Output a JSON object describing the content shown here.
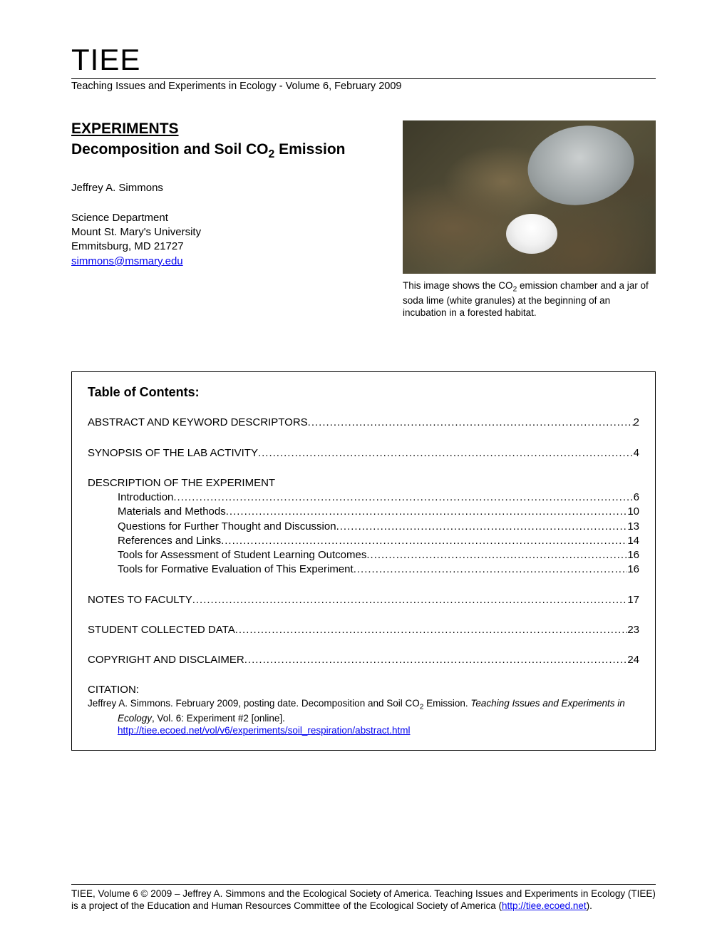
{
  "header": {
    "title": "TIEE",
    "subtitle": "Teaching Issues and Experiments in Ecology - Volume 6, February 2009"
  },
  "article": {
    "section_heading": "EXPERIMENTS",
    "title_prefix": "Decomposition and Soil CO",
    "title_sub": "2",
    "title_suffix": " Emission",
    "author": "Jeffrey A. Simmons",
    "affil_line1": "Science Department",
    "affil_line2": "Mount St. Mary's University",
    "affil_line3": "Emmitsburg, MD 21727",
    "email": "simmons@msmary.edu"
  },
  "figure": {
    "caption_prefix": "This image shows the CO",
    "caption_sub": "2",
    "caption_suffix": " emission chamber and a jar of soda lime (white granules) at the beginning of an incubation in a forested habitat."
  },
  "toc": {
    "title": "Table of Contents:",
    "items": [
      {
        "label": "ABSTRACT AND KEYWORD DESCRIPTORS",
        "page": "2",
        "spaced": true,
        "sub": false,
        "hasPage": true
      },
      {
        "label": "SYNOPSIS OF THE LAB ACTIVITY",
        "page": "4",
        "spaced": true,
        "sub": false,
        "hasPage": true
      },
      {
        "label": "DESCRIPTION OF THE EXPERIMENT",
        "page": "",
        "spaced": true,
        "sub": false,
        "hasPage": false
      },
      {
        "label": "Introduction",
        "page": "6",
        "spaced": false,
        "sub": true,
        "hasPage": true
      },
      {
        "label": "Materials and Methods",
        "page": "10",
        "spaced": false,
        "sub": true,
        "hasPage": true
      },
      {
        "label": "Questions for Further Thought and Discussion",
        "page": "13",
        "spaced": false,
        "sub": true,
        "hasPage": true
      },
      {
        "label": "References and Links",
        "page": "14",
        "spaced": false,
        "sub": true,
        "hasPage": true
      },
      {
        "label": "Tools for Assessment of Student Learning Outcomes",
        "page": "16",
        "spaced": false,
        "sub": true,
        "hasPage": true
      },
      {
        "label": "Tools for Formative Evaluation of This Experiment",
        "page": "16",
        "spaced": false,
        "sub": true,
        "hasPage": true
      },
      {
        "label": "NOTES TO FACULTY",
        "page": "17",
        "spaced": true,
        "sub": false,
        "hasPage": true
      },
      {
        "label": "STUDENT COLLECTED DATA",
        "page": "23",
        "spaced": true,
        "sub": false,
        "hasPage": true
      },
      {
        "label": "COPYRIGHT AND DISCLAIMER",
        "page": "24",
        "spaced": true,
        "sub": false,
        "hasPage": true
      }
    ],
    "citation_label": "CITATION:",
    "citation_text_prefix": "Jeffrey A. Simmons. February 2009, posting date. Decomposition and Soil CO",
    "citation_text_sub": "2",
    "citation_text_mid": " Emission. ",
    "citation_text_italic": "Teaching Issues and Experiments in Ecology",
    "citation_text_suffix": ", Vol. 6: Experiment #2 [online].",
    "citation_link": "http://tiee.ecoed.net/vol/v6/experiments/soil_respiration/abstract.html"
  },
  "footer": {
    "text_prefix": "TIEE, Volume 6 © 2009 – Jeffrey A. Simmons and the Ecological Society of America. Teaching Issues and Experiments in Ecology (TIEE) is a project of the Education and Human Resources Committee of the Ecological Society of America (",
    "link": "http://tiee.ecoed.net",
    "text_suffix": ")."
  },
  "style": {
    "link_color": "#0000ee",
    "text_color": "#000000",
    "bg_color": "#ffffff"
  }
}
